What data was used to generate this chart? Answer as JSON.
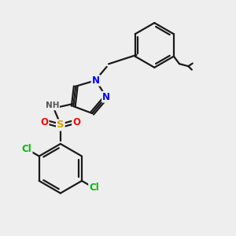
{
  "bg_color": "#eeeeee",
  "bond_color": "#1a1a1a",
  "bond_width": 1.6,
  "atom_colors": {
    "N": "#0000ff",
    "O": "#ff0000",
    "S": "#ccaa00",
    "Cl": "#00bb00",
    "H": "#555555",
    "C": "#1a1a1a"
  },
  "font_size_atom": 8.5,
  "font_size_small": 7.5
}
